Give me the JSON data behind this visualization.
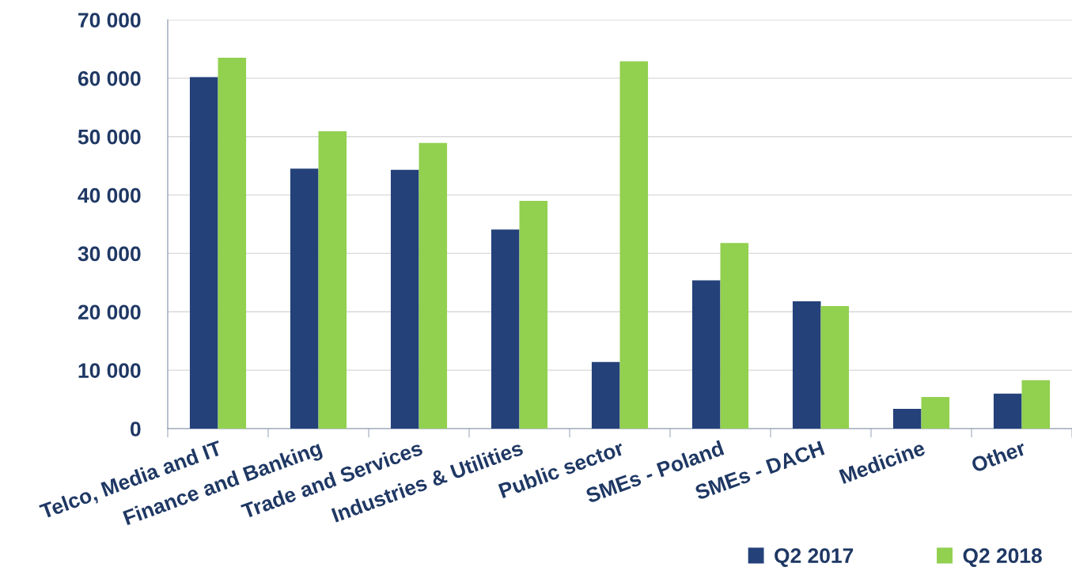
{
  "chart_data": {
    "type": "bar",
    "categories": [
      "Telco, Media and IT",
      "Finance and Banking",
      "Trade and Services",
      "Industries & Utilities",
      "Public sector",
      "SMEs - Poland",
      "SMEs - DACH",
      "Medicine",
      "Other"
    ],
    "series": [
      {
        "name": "Q2 2017",
        "color": "#24417a",
        "values": [
          60200,
          44500,
          44300,
          34100,
          11400,
          25400,
          21800,
          3400,
          6000
        ]
      },
      {
        "name": "Q2 2018",
        "color": "#92d050",
        "values": [
          63500,
          50900,
          48900,
          39000,
          62900,
          31800,
          21000,
          5400,
          8300
        ]
      }
    ],
    "ylim": [
      0,
      70000
    ],
    "yticks": [
      {
        "value": 0,
        "label": "0"
      },
      {
        "value": 10000,
        "label": "10 000"
      },
      {
        "value": 20000,
        "label": "20 000"
      },
      {
        "value": 30000,
        "label": "30 000"
      },
      {
        "value": 40000,
        "label": "40 000"
      },
      {
        "value": 50000,
        "label": "50 000"
      },
      {
        "value": 60000,
        "label": "60 000"
      },
      {
        "value": 70000,
        "label": "70 000"
      }
    ],
    "grid": "y",
    "legend": "bottom right"
  }
}
